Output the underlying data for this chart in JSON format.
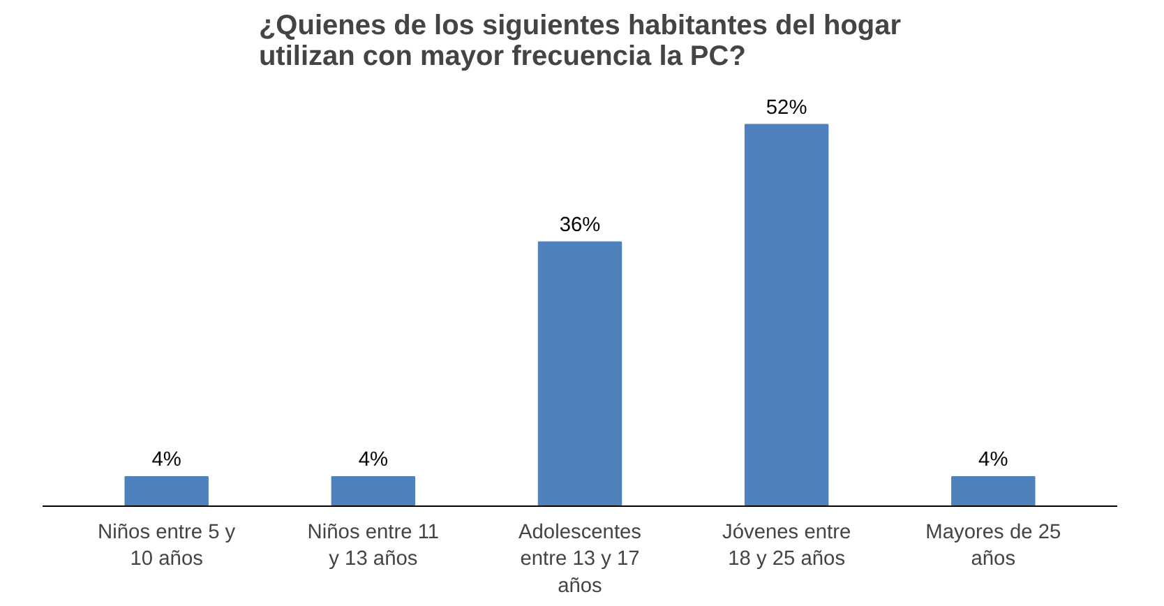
{
  "chart_data": {
    "type": "bar",
    "title": "¿Quienes de los siguientes habitantes del hogar utilizan con mayor frecuencia la PC?",
    "categories": [
      "Niños entre 5 y 10 años",
      "Niños entre 11 y 13 años",
      "Adolescentes entre 13 y 17 años",
      "Jóvenes entre 18 y 25 años",
      "Mayores de 25 años"
    ],
    "values": [
      4,
      4,
      36,
      52,
      4
    ],
    "value_labels": [
      "4%",
      "4%",
      "36%",
      "52%",
      "4%"
    ],
    "color": "#4f81bd",
    "grid": false
  }
}
